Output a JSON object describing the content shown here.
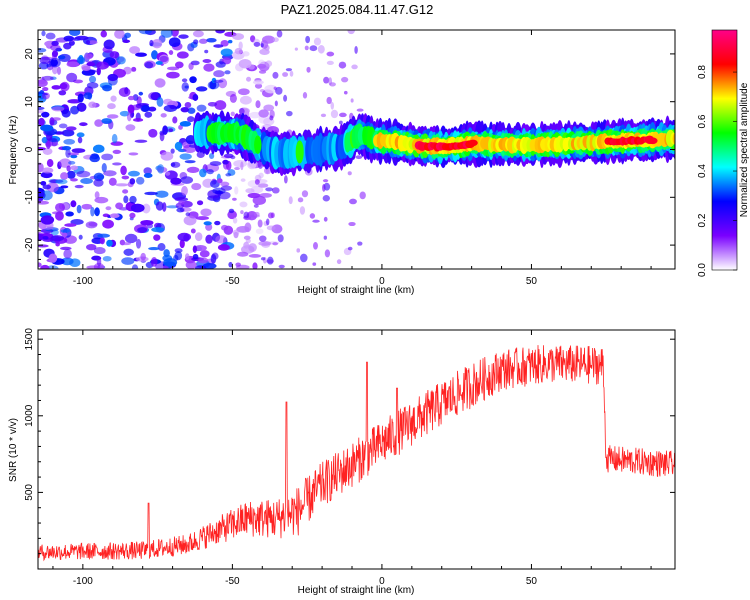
{
  "title": "PAZ1.2025.084.11.47.G12",
  "chart_data": [
    {
      "type": "heatmap",
      "xlabel": "Height of straight line (km)",
      "ylabel": "Frequency (Hz)",
      "xlim": [
        -115,
        98
      ],
      "ylim": [
        -25,
        25
      ],
      "xticks": [
        -100,
        -50,
        0,
        50
      ],
      "yticks": [
        -20,
        -10,
        0,
        10,
        20
      ],
      "colorbar": {
        "label": "Normalized spectral amplitude",
        "range": [
          0,
          0.97
        ],
        "ticks": [
          "0.0",
          "0.2",
          "0.4",
          "0.6",
          "0.8"
        ],
        "colormap": [
          "#ffffff",
          "#7a00ff",
          "#0000ff",
          "#00ffff",
          "#00ff00",
          "#ffff00",
          "#ff0000",
          "#ff0088"
        ]
      },
      "ridge": [
        {
          "x": -62,
          "f": 3.5,
          "a": 0.35
        },
        {
          "x": -55,
          "f": 3.5,
          "a": 0.45
        },
        {
          "x": -48,
          "f": 3.2,
          "a": 0.45
        },
        {
          "x": -42,
          "f": 1.0,
          "a": 0.4
        },
        {
          "x": -35,
          "f": -1.0,
          "a": 0.35
        },
        {
          "x": -28,
          "f": -0.5,
          "a": 0.4
        },
        {
          "x": -20,
          "f": 0.0,
          "a": 0.35
        },
        {
          "x": -14,
          "f": 0.5,
          "a": 0.35
        },
        {
          "x": -8,
          "f": 3.2,
          "a": 0.5
        },
        {
          "x": -3,
          "f": 2.0,
          "a": 0.55
        },
        {
          "x": 0,
          "f": 1.8,
          "a": 0.7
        },
        {
          "x": 5,
          "f": 1.5,
          "a": 0.72
        },
        {
          "x": 12,
          "f": 0.8,
          "a": 0.75
        },
        {
          "x": 20,
          "f": 0.6,
          "a": 0.78
        },
        {
          "x": 30,
          "f": 1.2,
          "a": 0.75
        },
        {
          "x": 40,
          "f": 1.0,
          "a": 0.7
        },
        {
          "x": 50,
          "f": 1.0,
          "a": 0.65
        },
        {
          "x": 60,
          "f": 1.2,
          "a": 0.68
        },
        {
          "x": 70,
          "f": 1.5,
          "a": 0.72
        },
        {
          "x": 80,
          "f": 1.8,
          "a": 0.78
        },
        {
          "x": 90,
          "f": 2.0,
          "a": 0.75
        },
        {
          "x": 98,
          "f": 2.2,
          "a": 0.65
        }
      ],
      "noise_region": {
        "x_from": -115,
        "x_to": -50,
        "a": 0.3
      }
    },
    {
      "type": "line",
      "xlabel": "Height of straight line (km)",
      "ylabel": "SNR (10 * v/v)",
      "xlim": [
        -115,
        98
      ],
      "ylim": [
        0,
        1560
      ],
      "xticks": [
        -100,
        -50,
        0,
        50
      ],
      "yticks": [
        500,
        1000,
        1500
      ],
      "color": "#ff2222",
      "envelope": [
        {
          "x": -115,
          "mean": 110,
          "spread": 70
        },
        {
          "x": -80,
          "mean": 120,
          "spread": 80
        },
        {
          "x": -65,
          "mean": 160,
          "spread": 90
        },
        {
          "x": -55,
          "mean": 250,
          "spread": 120
        },
        {
          "x": -45,
          "mean": 330,
          "spread": 160
        },
        {
          "x": -35,
          "mean": 330,
          "spread": 180
        },
        {
          "x": -28,
          "mean": 380,
          "spread": 220
        },
        {
          "x": -20,
          "mean": 550,
          "spread": 200
        },
        {
          "x": -10,
          "mean": 680,
          "spread": 200
        },
        {
          "x": 0,
          "mean": 820,
          "spread": 200
        },
        {
          "x": 10,
          "mean": 950,
          "spread": 200
        },
        {
          "x": 20,
          "mean": 1080,
          "spread": 200
        },
        {
          "x": 30,
          "mean": 1200,
          "spread": 200
        },
        {
          "x": 40,
          "mean": 1300,
          "spread": 180
        },
        {
          "x": 55,
          "mean": 1340,
          "spread": 170
        },
        {
          "x": 74,
          "mean": 1330,
          "spread": 170
        },
        {
          "x": 75,
          "mean": 720,
          "spread": 120
        },
        {
          "x": 98,
          "mean": 680,
          "spread": 120
        }
      ],
      "spikes": [
        {
          "x": -78,
          "y": 430
        },
        {
          "x": -32,
          "y": 1090
        },
        {
          "x": -5,
          "y": 1350
        },
        {
          "x": 5,
          "y": 1180
        }
      ]
    }
  ]
}
